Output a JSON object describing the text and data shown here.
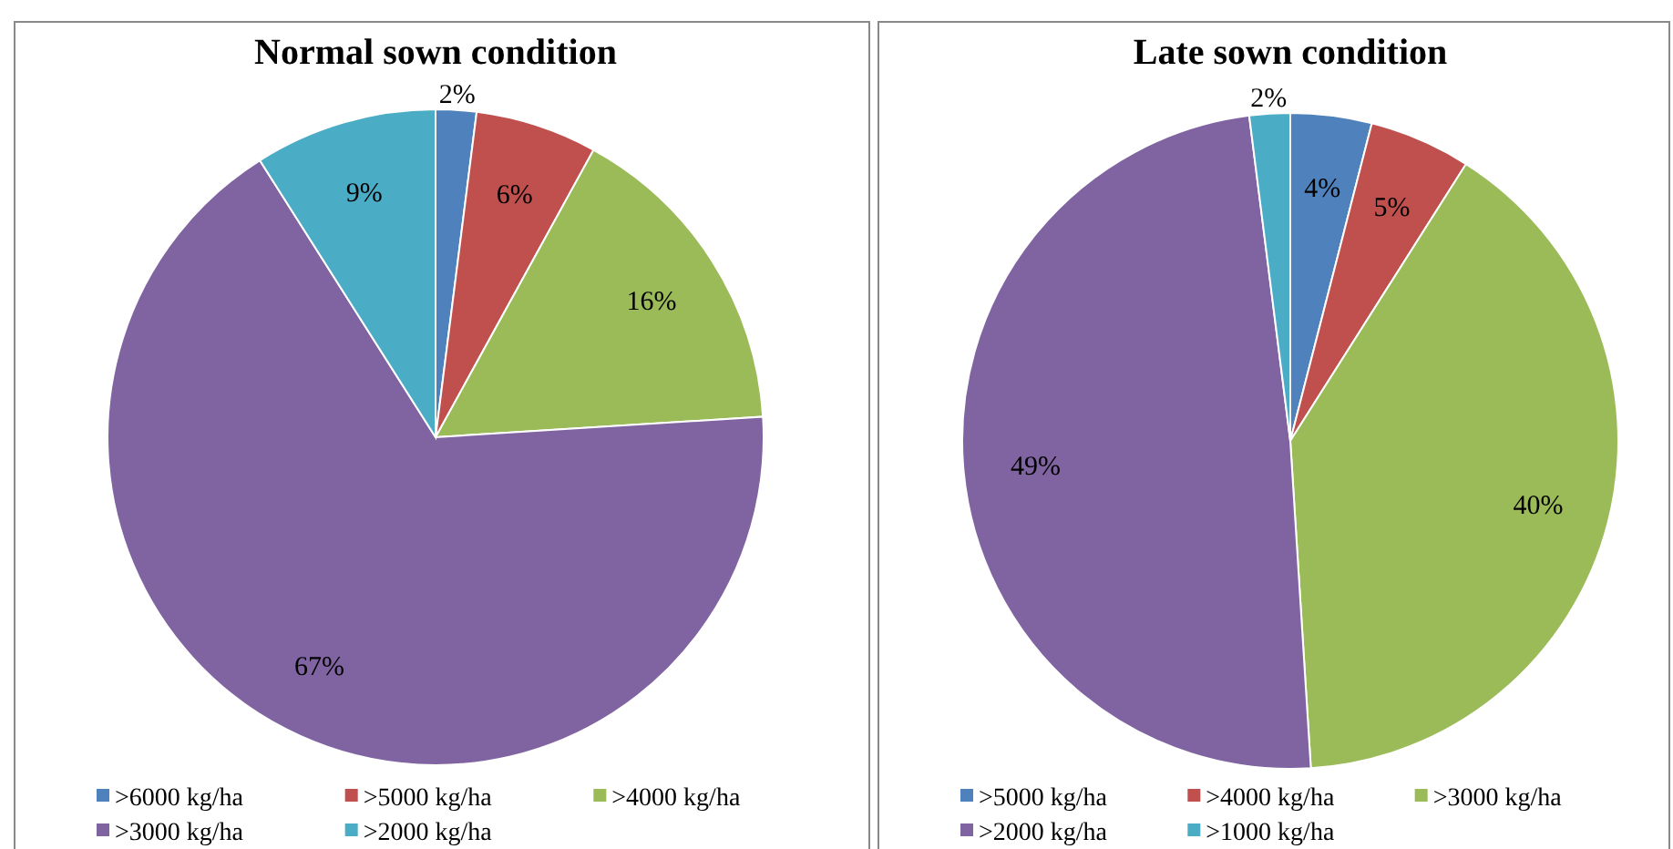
{
  "chart_data": [
    {
      "type": "pie",
      "title": "Normal sown condition",
      "categories": [
        ">6000 kg/ha",
        ">5000 kg/ha",
        ">4000 kg/ha",
        ">3000 kg/ha",
        ">2000 kg/ha"
      ],
      "values": [
        2,
        6,
        16,
        67,
        9
      ],
      "value_labels": [
        "2%",
        "6%",
        "16%",
        "67%",
        "9%"
      ],
      "colors": [
        "#4f81bd",
        "#c0504d",
        "#9bbb59",
        "#8064a2",
        "#4bacc6"
      ],
      "legend": "bottom"
    },
    {
      "type": "pie",
      "title": "Late sown condition",
      "categories": [
        ">5000 kg/ha",
        ">4000 kg/ha",
        ">3000 kg/ha",
        ">2000 kg/ha",
        ">1000 kg/ha"
      ],
      "values": [
        4,
        5,
        40,
        49,
        2
      ],
      "value_labels": [
        "4%",
        "5%",
        "40%",
        "49%",
        "2%"
      ],
      "colors": [
        "#4f81bd",
        "#c0504d",
        "#9bbb59",
        "#8064a2",
        "#4bacc6"
      ],
      "legend": "bottom"
    }
  ]
}
